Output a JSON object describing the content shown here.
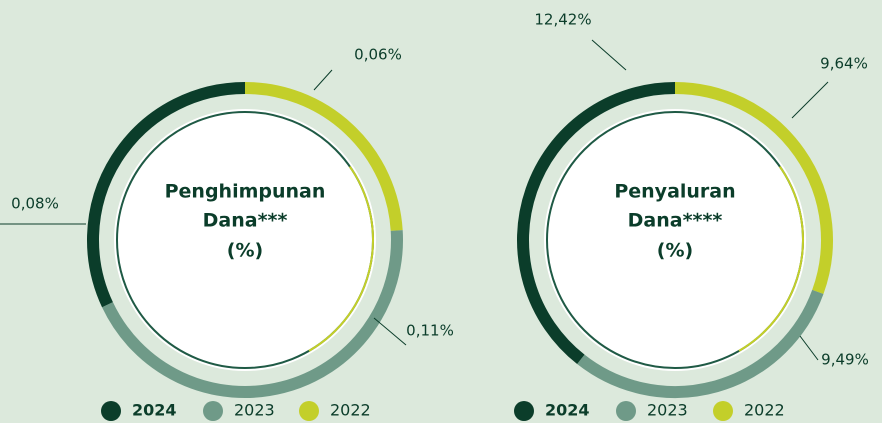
{
  "chart_data": [
    {
      "type": "donut",
      "title_lines": [
        "Penghimpunan",
        "Dana***",
        "(%)"
      ],
      "categories": [
        "2024",
        "2023",
        "2022"
      ],
      "values": [
        0.08,
        0.11,
        0.06
      ],
      "value_labels": [
        "0,08%",
        "0,11%",
        "0,06%"
      ],
      "colors": [
        "#0b3d2a",
        "#6f9a88",
        "#c3cf2a"
      ],
      "legend": "bottom"
    },
    {
      "type": "donut",
      "title_lines": [
        "Penyaluran",
        "Dana****",
        "(%)"
      ],
      "categories": [
        "2024",
        "2023",
        "2022"
      ],
      "values": [
        12.42,
        9.49,
        9.64
      ],
      "value_labels": [
        "12,42%",
        "9,49%",
        "9,64%"
      ],
      "colors": [
        "#0b3d2a",
        "#6f9a88",
        "#c3cf2a"
      ],
      "legend": "bottom"
    }
  ]
}
